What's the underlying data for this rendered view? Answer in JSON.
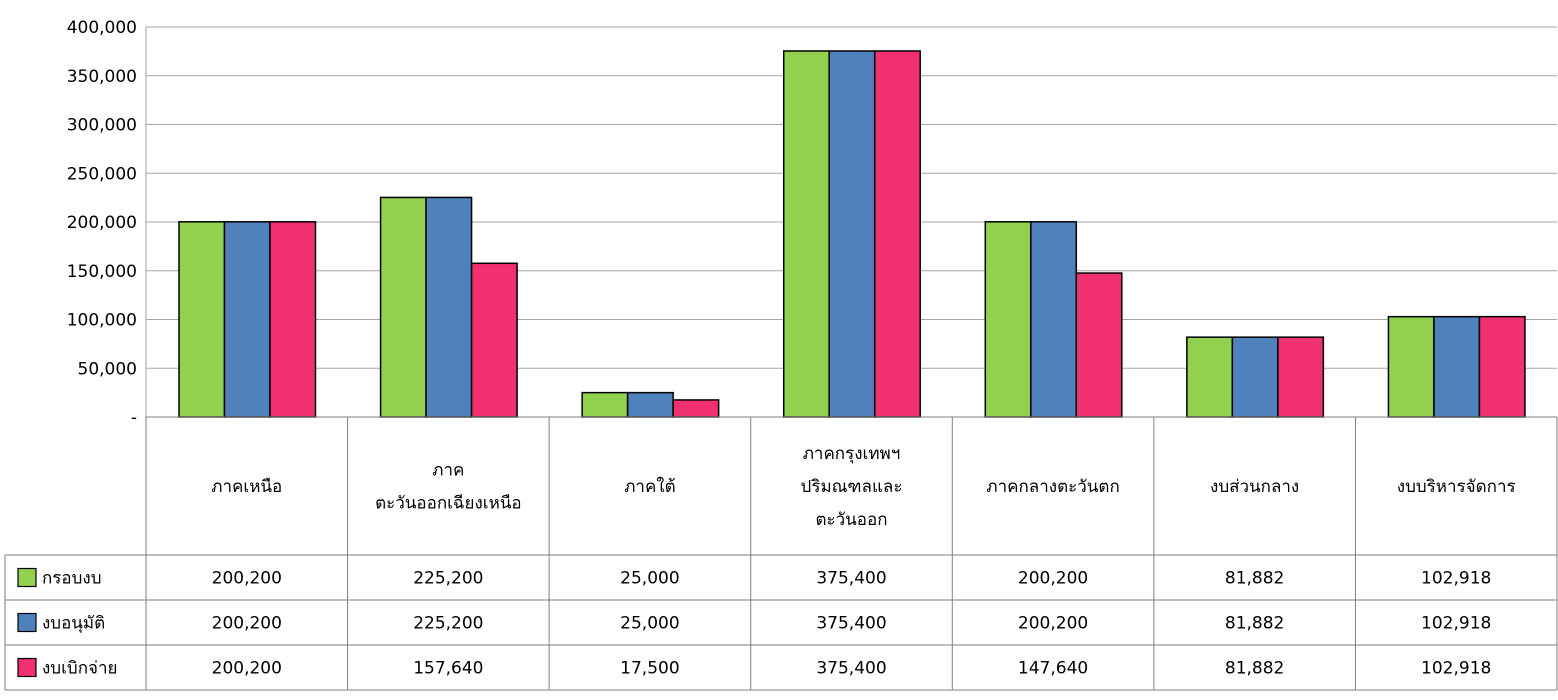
{
  "chart_data": {
    "type": "bar",
    "categories": [
      [
        "ภาคเหนือ"
      ],
      [
        "ภาค",
        "ตะวันออกเฉียงเหนือ"
      ],
      [
        "ภาคใต้"
      ],
      [
        "ภาคกรุงเทพฯ",
        "ปริมณฑลและ",
        "ตะวันออก"
      ],
      [
        "ภาคกลางตะวันตก"
      ],
      [
        "งบส่วนกลาง"
      ],
      [
        "งบบริหารจัดการ"
      ]
    ],
    "series": [
      {
        "name": "กรอบงบ",
        "color": "#92d050",
        "values": [
          200200,
          225200,
          25000,
          375400,
          200200,
          81882,
          102918
        ],
        "labels": [
          "200,200",
          "225,200",
          "25,000",
          "375,400",
          "200,200",
          "81,882",
          "102,918"
        ]
      },
      {
        "name": "งบอนุมัติ",
        "color": "#4f81bd",
        "values": [
          200200,
          225200,
          25000,
          375400,
          200200,
          81882,
          102918
        ],
        "labels": [
          "200,200",
          "225,200",
          "25,000",
          "375,400",
          "200,200",
          "81,882",
          "102,918"
        ]
      },
      {
        "name": "งบเบิกจ่าย",
        "color": "#f0306f",
        "values": [
          200200,
          157640,
          17500,
          375400,
          147640,
          81882,
          102918
        ],
        "labels": [
          "200,200",
          "157,640",
          "17,500",
          "375,400",
          "147,640",
          "81,882",
          "102,918"
        ]
      }
    ],
    "ylim": [
      0,
      400000
    ],
    "yticks": [
      0,
      50000,
      100000,
      150000,
      200000,
      250000,
      300000,
      350000,
      400000
    ],
    "ytick_labels": [
      "-",
      "50,000",
      "100,000",
      "150,000",
      "200,000",
      "250,000",
      "300,000",
      "350,000",
      "400,000"
    ],
    "grid": true,
    "legend": "data-table-left",
    "title": "",
    "xlabel": "",
    "ylabel": ""
  }
}
